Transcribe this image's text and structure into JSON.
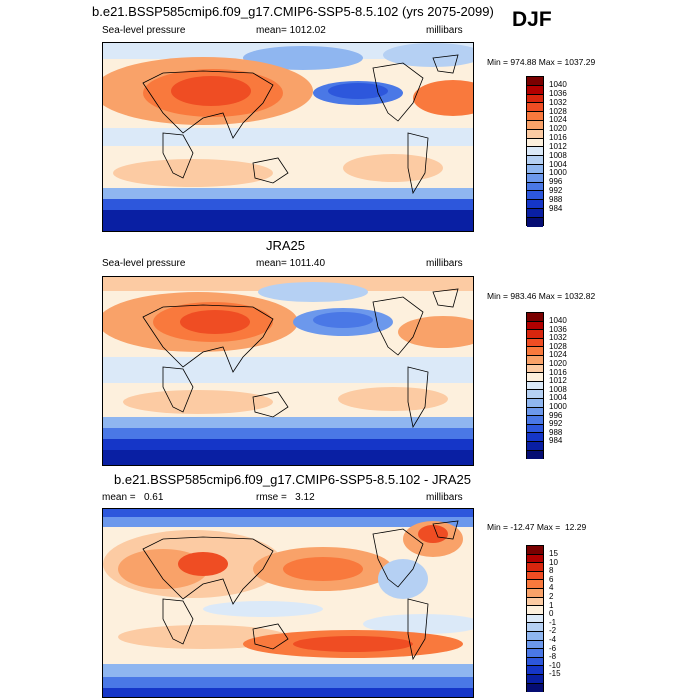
{
  "season": "DJF",
  "panels": [
    {
      "title": "b.e21.BSSP585cmip6.f09_g17.CMIP6-SSP5-8.5.102 (yrs 2075-2099)",
      "variable": "Sea-level pressure",
      "stat": "mean= 1012.02",
      "units": "millibars",
      "minmax": "Min = 974.88 Max = 1037.29",
      "colorbar": {
        "colors": [
          "#7a0000",
          "#b20000",
          "#d8260e",
          "#ef4d23",
          "#f9793d",
          "#f9a269",
          "#fccba3",
          "#fdf0dd",
          "#dbe9f8",
          "#b5d0f3",
          "#8fb6f0",
          "#6c98ec",
          "#4a78e6",
          "#2d57dc",
          "#1536c8",
          "#091fa3",
          "#050d73"
        ],
        "labels": [
          "1040",
          "1036",
          "1032",
          "1028",
          "1024",
          "1020",
          "1016",
          "1012",
          "1008",
          "1004",
          "1000",
          "996",
          "992",
          "988",
          "984"
        ]
      }
    },
    {
      "title": "JRA25",
      "variable": "Sea-level pressure",
      "stat": "mean= 1011.40",
      "units": "millibars",
      "minmax": "Min = 983.46 Max = 1032.82",
      "colorbar": {
        "colors": [
          "#7a0000",
          "#b20000",
          "#d8260e",
          "#ef4d23",
          "#f9793d",
          "#f9a269",
          "#fccba3",
          "#fdf0dd",
          "#dbe9f8",
          "#b5d0f3",
          "#8fb6f0",
          "#6c98ec",
          "#4a78e6",
          "#2d57dc",
          "#1536c8",
          "#091fa3",
          "#050d73"
        ],
        "labels": [
          "1040",
          "1036",
          "1032",
          "1028",
          "1024",
          "1020",
          "1016",
          "1012",
          "1008",
          "1004",
          "1000",
          "996",
          "992",
          "988",
          "984"
        ]
      }
    },
    {
      "title": "b.e21.BSSP585cmip6.f09_g17.CMIP6-SSP5-8.5.102 - JRA25",
      "stat": "mean =   0.61",
      "rmse": "rmse =   3.12",
      "units": "millibars",
      "minmax": "Min = -12.47 Max =  12.29",
      "colorbar": {
        "colors": [
          "#7a0000",
          "#b20000",
          "#d8260e",
          "#ef4d23",
          "#f9793d",
          "#f9a269",
          "#fccba3",
          "#fdf0dd",
          "#dbe9f8",
          "#b5d0f3",
          "#8fb6f0",
          "#6c98ec",
          "#4a78e6",
          "#2d57dc",
          "#1536c8",
          "#091fa3",
          "#050d73"
        ],
        "labels": [
          "15",
          "10",
          "8",
          "6",
          "4",
          "2",
          "1",
          "0",
          "-1",
          "-2",
          "-4",
          "-6",
          "-8",
          "-10",
          "-15"
        ]
      }
    }
  ]
}
